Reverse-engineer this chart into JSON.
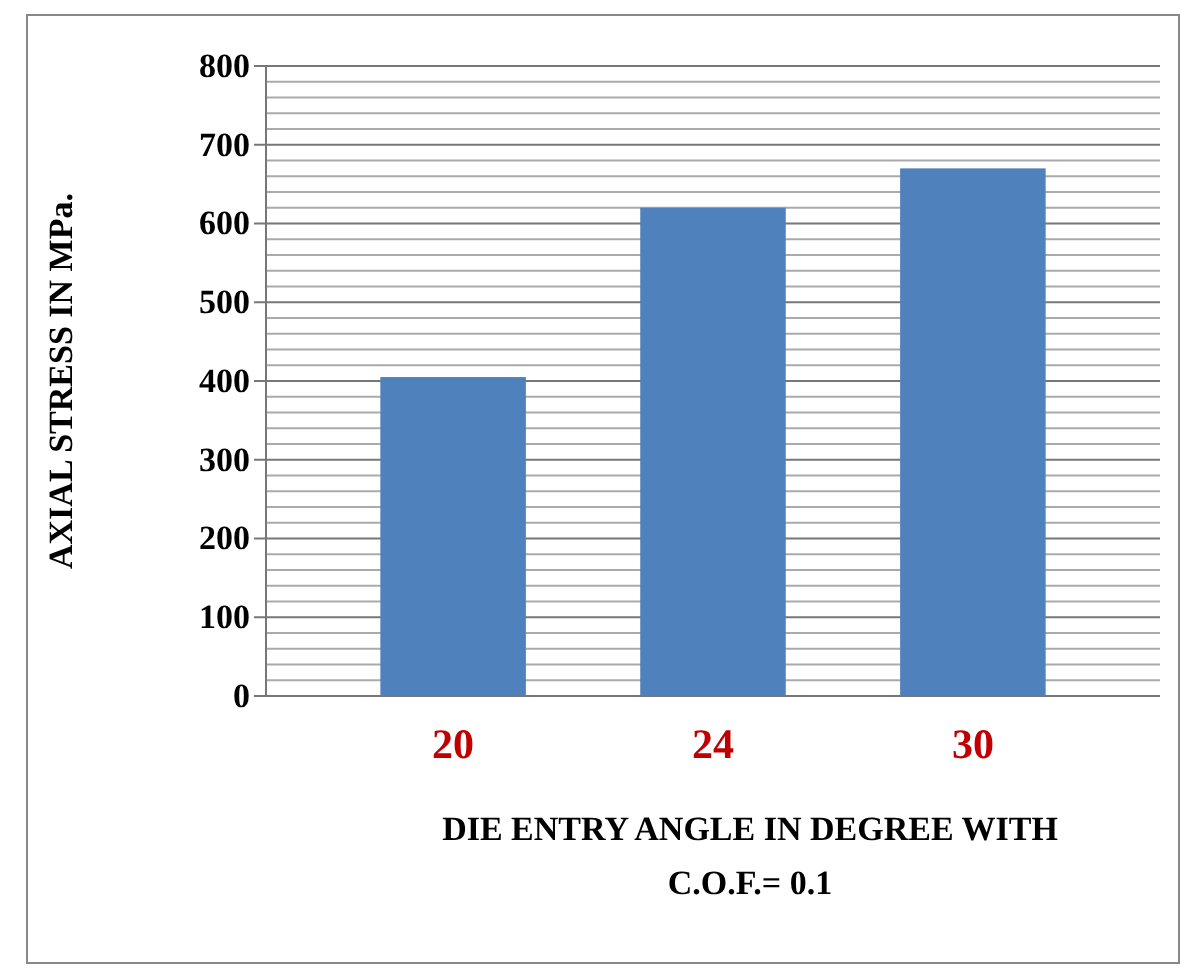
{
  "chart_data": {
    "type": "bar",
    "xlabel": "DIE ENTRY ANGLE IN DEGREE WITH C.O.F.= 0.1",
    "ylabel": "AXIAL STRESS IN MPa.",
    "categories": [
      "20",
      "24",
      "30"
    ],
    "values": [
      405,
      620,
      670
    ],
    "color": "#4f81bd",
    "ylim": [
      0,
      800
    ],
    "yticks": [
      0,
      {
        "value": 20,
        "label": null
      },
      {
        "value": 40,
        "label": null
      },
      {
        "value": 60,
        "label": null
      },
      {
        "value": 80,
        "label": null
      },
      100,
      {
        "value": 120,
        "label": null
      },
      {
        "value": 140,
        "label": null
      },
      {
        "value": 160,
        "label": null
      },
      {
        "value": 180,
        "label": null
      },
      200,
      {
        "value": 220,
        "label": null
      },
      {
        "value": 240,
        "label": null
      },
      {
        "value": 260,
        "label": null
      },
      {
        "value": 280,
        "label": null
      },
      300,
      {
        "value": 320,
        "label": null
      },
      {
        "value": 340,
        "label": null
      },
      {
        "value": 360,
        "label": null
      },
      {
        "value": 380,
        "label": null
      },
      400,
      {
        "value": 420,
        "label": null
      },
      {
        "value": 440,
        "label": null
      },
      {
        "value": 460,
        "label": null
      },
      {
        "value": 480,
        "label": null
      },
      500,
      {
        "value": 520,
        "label": null
      },
      {
        "value": 540,
        "label": null
      },
      {
        "value": 560,
        "label": null
      },
      {
        "value": 580,
        "label": null
      },
      600,
      {
        "value": 620,
        "label": null
      },
      {
        "value": 640,
        "label": null
      },
      {
        "value": 660,
        "label": null
      },
      {
        "value": 680,
        "label": null
      },
      700,
      {
        "value": 720,
        "label": null
      },
      {
        "value": 740,
        "label": null
      },
      {
        "value": 760,
        "label": null
      },
      {
        "value": 780,
        "label": null
      },
      800
    ],
    "grid": "y"
  }
}
